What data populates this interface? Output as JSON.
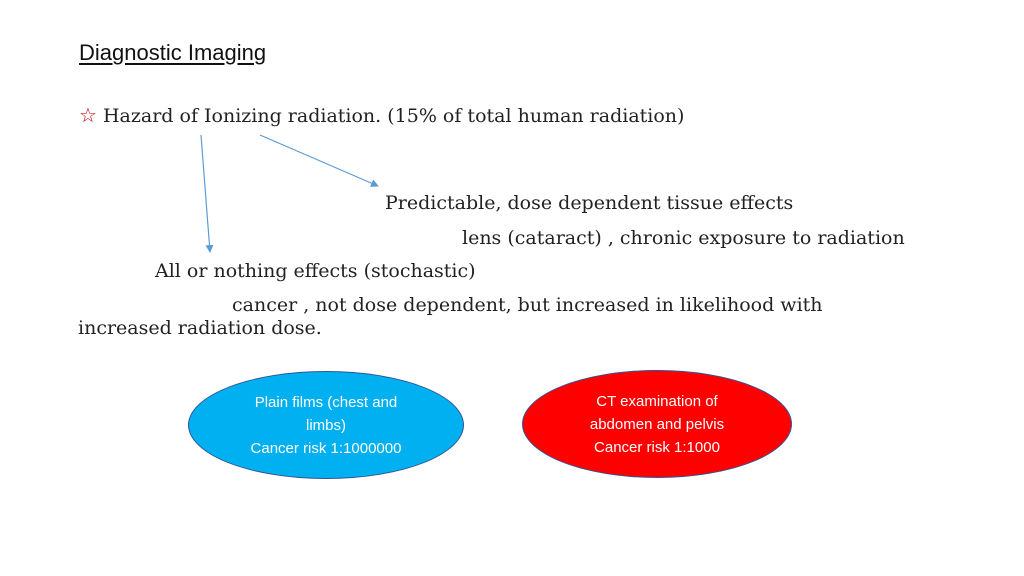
{
  "slide": {
    "title": "Diagnostic Imaging",
    "star_glyph": "☆",
    "hazard_line": "Hazard of Ionizing radiation. (15% of total human radiation)",
    "predictable": "Predictable, dose dependent tissue effects",
    "lens": "lens (cataract) , chronic exposure to radiation",
    "all_or_nothing": "All or nothing effects (stochastic)",
    "cancer_line1": "cancer , not dose dependent, but increased in likelihood with",
    "cancer_line2": "increased radiation dose."
  },
  "ovals": {
    "plain_films": "Plain films (chest and\nlimbs)\nCancer risk 1:1000000",
    "ct": "CT examination of\nabdomen and pelvis\nCancer risk 1:1000"
  },
  "colors": {
    "arrow": "#5b9bd5",
    "blue_oval": "#00b0f0",
    "red_oval": "#ff0000",
    "oval_border": "#2e5597",
    "star": "#c00000"
  }
}
